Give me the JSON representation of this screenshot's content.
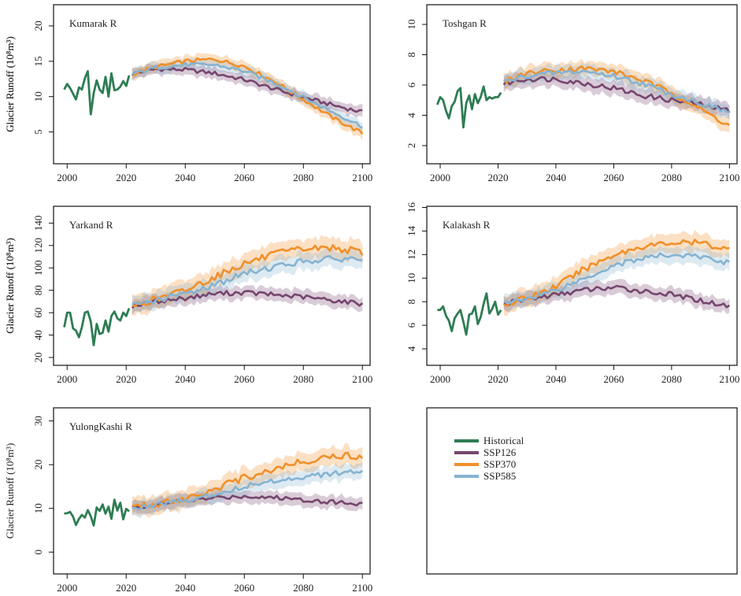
{
  "chart_data": [
    {
      "type": "line",
      "title": "Kumarak R",
      "ylabel": "Glacier Runoff",
      "ylabel_unit": "(10⁸m³)",
      "xlim": [
        1997,
        2101
      ],
      "ylim": [
        0.5,
        23
      ],
      "xticks": [
        2000,
        2020,
        2040,
        2060,
        2080,
        2100
      ],
      "yticks": [
        5,
        10,
        15,
        20
      ],
      "historical": {
        "name": "Historical",
        "x": [
          1999,
          2000,
          2001,
          2002,
          2003,
          2004,
          2005,
          2006,
          2007,
          2008,
          2009,
          2010,
          2011,
          2012,
          2013,
          2014,
          2015,
          2016,
          2017,
          2018,
          2019,
          2020,
          2021
        ],
        "values": [
          11.0,
          11.8,
          11.2,
          10.4,
          9.6,
          11.3,
          11.0,
          12.6,
          13.6,
          7.5,
          10.5,
          12.3,
          11.0,
          10.5,
          12.8,
          10.0,
          13.3,
          10.9,
          11.0,
          11.4,
          12.2,
          11.5,
          13.0
        ]
      },
      "series": [
        {
          "name": "SSP126",
          "start": 2022,
          "end": 2100,
          "keys": [
            [
              2022,
              13.2
            ],
            [
              2030,
              13.9
            ],
            [
              2040,
              13.8
            ],
            [
              2050,
              13.3
            ],
            [
              2060,
              12.4
            ],
            [
              2070,
              11.1
            ],
            [
              2080,
              9.9
            ],
            [
              2090,
              8.8
            ],
            [
              2100,
              7.8
            ]
          ],
          "spread": 0.8
        },
        {
          "name": "SSP370",
          "start": 2022,
          "end": 2100,
          "keys": [
            [
              2022,
              13.2
            ],
            [
              2030,
              14.2
            ],
            [
              2040,
              15.0
            ],
            [
              2050,
              15.3
            ],
            [
              2060,
              14.3
            ],
            [
              2070,
              12.2
            ],
            [
              2080,
              9.6
            ],
            [
              2090,
              7.0
            ],
            [
              2100,
              4.8
            ]
          ],
          "spread": 0.8
        },
        {
          "name": "SSP585",
          "start": 2022,
          "end": 2100,
          "keys": [
            [
              2022,
              13.2
            ],
            [
              2030,
              14.1
            ],
            [
              2040,
              14.5
            ],
            [
              2050,
              14.5
            ],
            [
              2060,
              13.6
            ],
            [
              2070,
              12.0
            ],
            [
              2080,
              9.9
            ],
            [
              2090,
              7.8
            ],
            [
              2100,
              5.8
            ]
          ],
          "spread": 0.8
        }
      ]
    },
    {
      "type": "line",
      "title": "Toshgan R",
      "ylabel": "Glacier Runoff",
      "ylabel_unit": "(10⁸m³)",
      "xlim": [
        1997,
        2101
      ],
      "ylim": [
        0.8,
        11.3
      ],
      "xticks": [
        2000,
        2020,
        2040,
        2060,
        2080,
        2100
      ],
      "yticks": [
        2,
        4,
        6,
        8,
        10
      ],
      "historical": {
        "name": "Historical",
        "x": [
          1999,
          2000,
          2001,
          2002,
          2003,
          2004,
          2005,
          2006,
          2007,
          2008,
          2009,
          2010,
          2011,
          2012,
          2013,
          2014,
          2015,
          2016,
          2017,
          2018,
          2019,
          2020,
          2021
        ],
        "values": [
          4.7,
          5.2,
          5.0,
          4.3,
          3.8,
          4.6,
          4.9,
          5.6,
          5.8,
          3.2,
          4.8,
          5.3,
          4.4,
          5.4,
          4.8,
          5.2,
          5.9,
          5.0,
          5.2,
          5.1,
          5.2,
          5.2,
          5.5
        ]
      },
      "series": [
        {
          "name": "SSP126",
          "start": 2022,
          "end": 2100,
          "keys": [
            [
              2022,
              6.1
            ],
            [
              2030,
              6.4
            ],
            [
              2040,
              6.4
            ],
            [
              2050,
              6.1
            ],
            [
              2060,
              5.8
            ],
            [
              2070,
              5.3
            ],
            [
              2080,
              5.0
            ],
            [
              2090,
              4.7
            ],
            [
              2100,
              4.3
            ]
          ],
          "spread": 0.5
        },
        {
          "name": "SSP370",
          "start": 2022,
          "end": 2100,
          "keys": [
            [
              2022,
              6.2
            ],
            [
              2030,
              6.8
            ],
            [
              2040,
              7.0
            ],
            [
              2050,
              7.1
            ],
            [
              2060,
              6.9
            ],
            [
              2070,
              6.3
            ],
            [
              2080,
              5.5
            ],
            [
              2090,
              4.4
            ],
            [
              2100,
              3.3
            ]
          ],
          "spread": 0.5
        },
        {
          "name": "SSP585",
          "start": 2022,
          "end": 2100,
          "keys": [
            [
              2022,
              6.2
            ],
            [
              2030,
              6.6
            ],
            [
              2040,
              6.8
            ],
            [
              2050,
              6.9
            ],
            [
              2060,
              6.6
            ],
            [
              2070,
              6.1
            ],
            [
              2080,
              5.4
            ],
            [
              2090,
              4.8
            ],
            [
              2100,
              4.2
            ]
          ],
          "spread": 0.5
        }
      ]
    },
    {
      "type": "line",
      "title": "Yarkand R",
      "ylabel": "Glacier Runoff",
      "ylabel_unit": "(10⁸m³)",
      "xlim": [
        1997,
        2101
      ],
      "ylim": [
        13,
        155
      ],
      "xticks": [
        2000,
        2020,
        2040,
        2060,
        2080,
        2100
      ],
      "yticks": [
        20,
        40,
        60,
        80,
        100,
        120,
        140
      ],
      "historical": {
        "name": "Historical",
        "x": [
          1999,
          2000,
          2001,
          2002,
          2003,
          2004,
          2005,
          2006,
          2007,
          2008,
          2009,
          2010,
          2011,
          2012,
          2013,
          2014,
          2015,
          2016,
          2017,
          2018,
          2019,
          2020,
          2021
        ],
        "values": [
          47,
          60,
          60,
          46,
          44,
          38,
          47,
          60,
          61,
          52,
          31,
          50,
          41,
          42,
          53,
          43,
          57,
          61,
          55,
          53,
          60,
          57,
          64
        ]
      },
      "series": [
        {
          "name": "SSP126",
          "start": 2022,
          "end": 2100,
          "keys": [
            [
              2022,
              66
            ],
            [
              2030,
              70
            ],
            [
              2040,
              73
            ],
            [
              2050,
              77
            ],
            [
              2060,
              78
            ],
            [
              2070,
              76
            ],
            [
              2080,
              74
            ],
            [
              2090,
              71
            ],
            [
              2100,
              68
            ]
          ],
          "spread": 6
        },
        {
          "name": "SSP370",
          "start": 2022,
          "end": 2100,
          "keys": [
            [
              2022,
              66
            ],
            [
              2030,
              72
            ],
            [
              2040,
              80
            ],
            [
              2050,
              92
            ],
            [
              2060,
              104
            ],
            [
              2070,
              112
            ],
            [
              2080,
              117
            ],
            [
              2090,
              118
            ],
            [
              2100,
              114
            ]
          ],
          "spread": 9
        },
        {
          "name": "SSP585",
          "start": 2022,
          "end": 2100,
          "keys": [
            [
              2022,
              66
            ],
            [
              2030,
              71
            ],
            [
              2040,
              77
            ],
            [
              2050,
              85
            ],
            [
              2060,
              95
            ],
            [
              2070,
              101
            ],
            [
              2080,
              106
            ],
            [
              2090,
              108
            ],
            [
              2100,
              108
            ]
          ],
          "spread": 8
        }
      ]
    },
    {
      "type": "line",
      "title": "Kalakash R",
      "ylabel": "Glacier Runoff",
      "ylabel_unit": "(10⁸m³)",
      "xlim": [
        1997,
        2101
      ],
      "ylim": [
        2.6,
        16.1
      ],
      "xticks": [
        2000,
        2020,
        2040,
        2060,
        2080,
        2100
      ],
      "yticks": [
        4,
        6,
        8,
        10,
        12,
        14,
        16
      ],
      "historical": {
        "name": "Historical",
        "x": [
          1999,
          2000,
          2001,
          2002,
          2003,
          2004,
          2005,
          2006,
          2007,
          2008,
          2009,
          2010,
          2011,
          2012,
          2013,
          2014,
          2015,
          2016,
          2017,
          2018,
          2019,
          2020,
          2021
        ],
        "values": [
          7.3,
          7.3,
          7.6,
          6.8,
          6.4,
          5.5,
          6.6,
          7.0,
          7.3,
          6.3,
          5.2,
          6.9,
          7.0,
          7.6,
          6.1,
          6.7,
          7.8,
          8.7,
          7.0,
          7.4,
          8.0,
          6.9,
          7.3
        ]
      },
      "series": [
        {
          "name": "SSP126",
          "start": 2022,
          "end": 2100,
          "keys": [
            [
              2022,
              7.8
            ],
            [
              2030,
              8.2
            ],
            [
              2040,
              8.6
            ],
            [
              2050,
              9.0
            ],
            [
              2060,
              9.2
            ],
            [
              2070,
              8.9
            ],
            [
              2080,
              8.6
            ],
            [
              2090,
              8.1
            ],
            [
              2100,
              7.6
            ]
          ],
          "spread": 0.6
        },
        {
          "name": "SSP370",
          "start": 2022,
          "end": 2100,
          "keys": [
            [
              2022,
              7.8
            ],
            [
              2030,
              8.3
            ],
            [
              2040,
              9.3
            ],
            [
              2050,
              10.8
            ],
            [
              2060,
              12.0
            ],
            [
              2070,
              12.7
            ],
            [
              2080,
              13.0
            ],
            [
              2090,
              13.0
            ],
            [
              2100,
              12.4
            ]
          ],
          "spread": 0.8
        },
        {
          "name": "SSP585",
          "start": 2022,
          "end": 2100,
          "keys": [
            [
              2022,
              7.8
            ],
            [
              2030,
              8.3
            ],
            [
              2040,
              9.0
            ],
            [
              2050,
              10.0
            ],
            [
              2060,
              11.1
            ],
            [
              2070,
              11.7
            ],
            [
              2080,
              12.0
            ],
            [
              2090,
              11.8
            ],
            [
              2100,
              11.3
            ]
          ],
          "spread": 0.7
        }
      ]
    },
    {
      "type": "line",
      "title": "YulongKashi R",
      "ylabel": "Glacier Runoff",
      "ylabel_unit": "(10⁸m³)",
      "xlim": [
        1997,
        2101
      ],
      "ylim": [
        -5,
        33
      ],
      "xticks": [
        2000,
        2020,
        2040,
        2060,
        2080,
        2100
      ],
      "yticks": [
        0,
        10,
        20,
        30
      ],
      "historical": {
        "name": "Historical",
        "x": [
          1999,
          2000,
          2001,
          2002,
          2003,
          2004,
          2005,
          2006,
          2007,
          2008,
          2009,
          2010,
          2011,
          2012,
          2013,
          2014,
          2015,
          2016,
          2017,
          2018,
          2019,
          2020,
          2021
        ],
        "values": [
          8.8,
          8.9,
          9.2,
          8.1,
          6.2,
          7.6,
          8.5,
          7.9,
          9.6,
          8.2,
          6.1,
          10.2,
          9.4,
          10.9,
          8.8,
          10.4,
          7.6,
          12.0,
          9.5,
          11.3,
          7.5,
          9.9,
          9.3
        ]
      },
      "series": [
        {
          "name": "SSP126",
          "start": 2022,
          "end": 2100,
          "keys": [
            [
              2022,
              10.2
            ],
            [
              2030,
              10.8
            ],
            [
              2040,
              11.7
            ],
            [
              2050,
              12.4
            ],
            [
              2060,
              12.8
            ],
            [
              2070,
              12.5
            ],
            [
              2080,
              12.0
            ],
            [
              2090,
              11.5
            ],
            [
              2100,
              11.0
            ]
          ],
          "spread": 1.5
        },
        {
          "name": "SSP370",
          "start": 2022,
          "end": 2100,
          "keys": [
            [
              2022,
              10.2
            ],
            [
              2030,
              11.0
            ],
            [
              2040,
              12.3
            ],
            [
              2050,
              14.5
            ],
            [
              2060,
              17.0
            ],
            [
              2070,
              19.0
            ],
            [
              2080,
              20.8
            ],
            [
              2090,
              22.0
            ],
            [
              2100,
              22.0
            ]
          ],
          "spread": 2.2
        },
        {
          "name": "SSP585",
          "start": 2022,
          "end": 2100,
          "keys": [
            [
              2022,
              10.2
            ],
            [
              2030,
              10.9
            ],
            [
              2040,
              11.8
            ],
            [
              2050,
              13.3
            ],
            [
              2060,
              15.0
            ],
            [
              2070,
              16.3
            ],
            [
              2080,
              17.3
            ],
            [
              2090,
              18.0
            ],
            [
              2100,
              18.2
            ]
          ],
          "spread": 1.8
        }
      ]
    }
  ],
  "legend": [
    {
      "label": "Historical",
      "color": "#2e7d53"
    },
    {
      "label": "SSP126",
      "color": "#76466e"
    },
    {
      "label": "SSP370",
      "color": "#f0902a"
    },
    {
      "label": "SSP585",
      "color": "#86b3d1"
    }
  ],
  "colors": {
    "Historical": "#2e7d53",
    "SSP126": "#76466e",
    "SSP370": "#f0902a",
    "SSP585": "#86b3d1"
  }
}
